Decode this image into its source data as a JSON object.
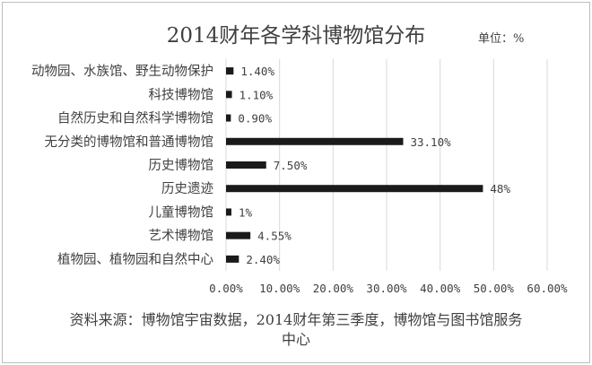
{
  "header": {
    "title": "2014财年各学科博物馆分布",
    "unit": "单位：%"
  },
  "footer": {
    "source": "资料来源：博物馆宇宙数据，2014财年第三季度，博物馆与图书馆服务中心"
  },
  "colors": {
    "bar": "#1a1a1a",
    "grid": "#d9d9d9",
    "text": "#404040"
  },
  "chart_data": {
    "type": "bar",
    "orientation": "horizontal",
    "title": "2014财年各学科博物馆分布",
    "xlabel": "",
    "ylabel": "",
    "categories": [
      "动物园、水族馆、野生动物保护",
      "科技博物馆",
      "自然历史和自然科学博物馆",
      "无分类的博物馆和普通博物馆",
      "历史博物馆",
      "历史遗迹",
      "儿童博物馆",
      "艺术博物馆",
      "植物园、植物园和自然中心"
    ],
    "values": [
      1.4,
      1.1,
      0.9,
      33.1,
      7.5,
      48,
      1,
      4.55,
      2.4
    ],
    "data_labels": [
      "1.40%",
      "1.10%",
      "0.90%",
      "33.10%",
      "7.50%",
      "48%",
      "1%",
      "4.55%",
      "2.40%"
    ],
    "xlim": [
      0,
      60
    ],
    "xticks": [
      0,
      10,
      20,
      30,
      40,
      50,
      60
    ],
    "xtick_labels": [
      "0.00%",
      "10.00%",
      "20.00%",
      "30.00%",
      "40.00%",
      "50.00%",
      "60.00%"
    ],
    "grid": true,
    "legend": "none"
  }
}
